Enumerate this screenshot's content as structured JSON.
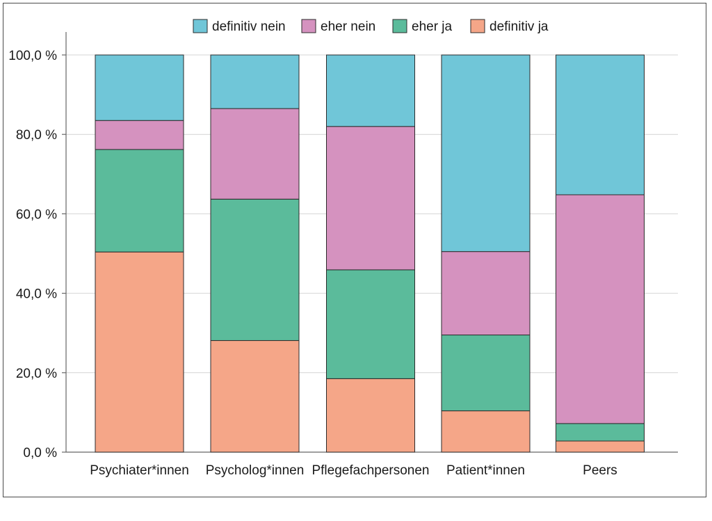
{
  "chart_data": {
    "type": "bar",
    "stacked": true,
    "categories": [
      "Psychiater*innen",
      "Psycholog*innen",
      "Pflegefachpersonen",
      "Patient*innen",
      "Peers"
    ],
    "series": [
      {
        "name": "definitiv ja",
        "color": "#f5a688",
        "values": [
          50.4,
          28.1,
          18.5,
          10.4,
          2.8
        ]
      },
      {
        "name": "eher ja",
        "color": "#5bbb9b",
        "values": [
          25.8,
          35.6,
          27.4,
          19.1,
          4.4
        ]
      },
      {
        "name": "eher nein",
        "color": "#d592bf",
        "values": [
          7.3,
          22.8,
          36.1,
          21.0,
          57.6
        ]
      },
      {
        "name": "definitiv nein",
        "color": "#70c6d8",
        "values": [
          16.5,
          13.5,
          18.0,
          49.5,
          35.2
        ]
      }
    ],
    "legend_order": [
      "definitiv nein",
      "eher nein",
      "eher ja",
      "definitiv ja"
    ],
    "yticks": [
      "0,0 %",
      "20,0 %",
      "40,0 %",
      "60,0 %",
      "80,0 %",
      "100,0 %"
    ],
    "ytick_values": [
      0,
      20,
      40,
      60,
      80,
      100
    ],
    "ylim": [
      0,
      100
    ],
    "grid": true,
    "legend_position": "top"
  }
}
